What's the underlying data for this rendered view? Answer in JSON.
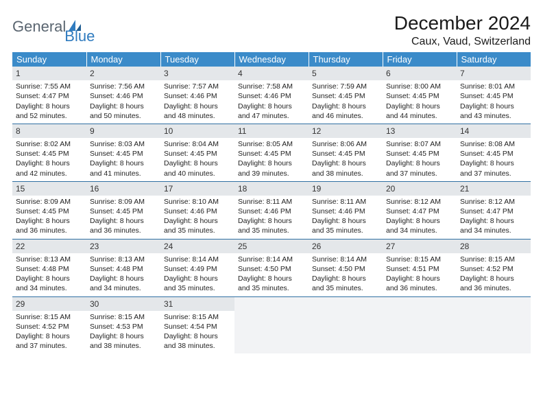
{
  "logo": {
    "general": "General",
    "blue": "Blue"
  },
  "title": "December 2024",
  "location": "Caux, Vaud, Switzerland",
  "style": {
    "header_bg": "#3b8bc9",
    "header_fg": "#ffffff",
    "daynum_bg": "#e4e7ea",
    "cell_border": "#2f6fa3",
    "empty_bg": "#f2f3f5",
    "accent_blue": "#2f7bbf",
    "logo_gray": "#5a6570"
  },
  "weekdays": [
    "Sunday",
    "Monday",
    "Tuesday",
    "Wednesday",
    "Thursday",
    "Friday",
    "Saturday"
  ],
  "days": [
    {
      "n": 1,
      "sr": "7:55 AM",
      "ss": "4:47 PM",
      "dl": "8 hours and 52 minutes."
    },
    {
      "n": 2,
      "sr": "7:56 AM",
      "ss": "4:46 PM",
      "dl": "8 hours and 50 minutes."
    },
    {
      "n": 3,
      "sr": "7:57 AM",
      "ss": "4:46 PM",
      "dl": "8 hours and 48 minutes."
    },
    {
      "n": 4,
      "sr": "7:58 AM",
      "ss": "4:46 PM",
      "dl": "8 hours and 47 minutes."
    },
    {
      "n": 5,
      "sr": "7:59 AM",
      "ss": "4:45 PM",
      "dl": "8 hours and 46 minutes."
    },
    {
      "n": 6,
      "sr": "8:00 AM",
      "ss": "4:45 PM",
      "dl": "8 hours and 44 minutes."
    },
    {
      "n": 7,
      "sr": "8:01 AM",
      "ss": "4:45 PM",
      "dl": "8 hours and 43 minutes."
    },
    {
      "n": 8,
      "sr": "8:02 AM",
      "ss": "4:45 PM",
      "dl": "8 hours and 42 minutes."
    },
    {
      "n": 9,
      "sr": "8:03 AM",
      "ss": "4:45 PM",
      "dl": "8 hours and 41 minutes."
    },
    {
      "n": 10,
      "sr": "8:04 AM",
      "ss": "4:45 PM",
      "dl": "8 hours and 40 minutes."
    },
    {
      "n": 11,
      "sr": "8:05 AM",
      "ss": "4:45 PM",
      "dl": "8 hours and 39 minutes."
    },
    {
      "n": 12,
      "sr": "8:06 AM",
      "ss": "4:45 PM",
      "dl": "8 hours and 38 minutes."
    },
    {
      "n": 13,
      "sr": "8:07 AM",
      "ss": "4:45 PM",
      "dl": "8 hours and 37 minutes."
    },
    {
      "n": 14,
      "sr": "8:08 AM",
      "ss": "4:45 PM",
      "dl": "8 hours and 37 minutes."
    },
    {
      "n": 15,
      "sr": "8:09 AM",
      "ss": "4:45 PM",
      "dl": "8 hours and 36 minutes."
    },
    {
      "n": 16,
      "sr": "8:09 AM",
      "ss": "4:45 PM",
      "dl": "8 hours and 36 minutes."
    },
    {
      "n": 17,
      "sr": "8:10 AM",
      "ss": "4:46 PM",
      "dl": "8 hours and 35 minutes."
    },
    {
      "n": 18,
      "sr": "8:11 AM",
      "ss": "4:46 PM",
      "dl": "8 hours and 35 minutes."
    },
    {
      "n": 19,
      "sr": "8:11 AM",
      "ss": "4:46 PM",
      "dl": "8 hours and 35 minutes."
    },
    {
      "n": 20,
      "sr": "8:12 AM",
      "ss": "4:47 PM",
      "dl": "8 hours and 34 minutes."
    },
    {
      "n": 21,
      "sr": "8:12 AM",
      "ss": "4:47 PM",
      "dl": "8 hours and 34 minutes."
    },
    {
      "n": 22,
      "sr": "8:13 AM",
      "ss": "4:48 PM",
      "dl": "8 hours and 34 minutes."
    },
    {
      "n": 23,
      "sr": "8:13 AM",
      "ss": "4:48 PM",
      "dl": "8 hours and 34 minutes."
    },
    {
      "n": 24,
      "sr": "8:14 AM",
      "ss": "4:49 PM",
      "dl": "8 hours and 35 minutes."
    },
    {
      "n": 25,
      "sr": "8:14 AM",
      "ss": "4:50 PM",
      "dl": "8 hours and 35 minutes."
    },
    {
      "n": 26,
      "sr": "8:14 AM",
      "ss": "4:50 PM",
      "dl": "8 hours and 35 minutes."
    },
    {
      "n": 27,
      "sr": "8:15 AM",
      "ss": "4:51 PM",
      "dl": "8 hours and 36 minutes."
    },
    {
      "n": 28,
      "sr": "8:15 AM",
      "ss": "4:52 PM",
      "dl": "8 hours and 36 minutes."
    },
    {
      "n": 29,
      "sr": "8:15 AM",
      "ss": "4:52 PM",
      "dl": "8 hours and 37 minutes."
    },
    {
      "n": 30,
      "sr": "8:15 AM",
      "ss": "4:53 PM",
      "dl": "8 hours and 38 minutes."
    },
    {
      "n": 31,
      "sr": "8:15 AM",
      "ss": "4:54 PM",
      "dl": "8 hours and 38 minutes."
    }
  ],
  "labels": {
    "sunrise": "Sunrise:",
    "sunset": "Sunset:",
    "daylight": "Daylight:"
  }
}
